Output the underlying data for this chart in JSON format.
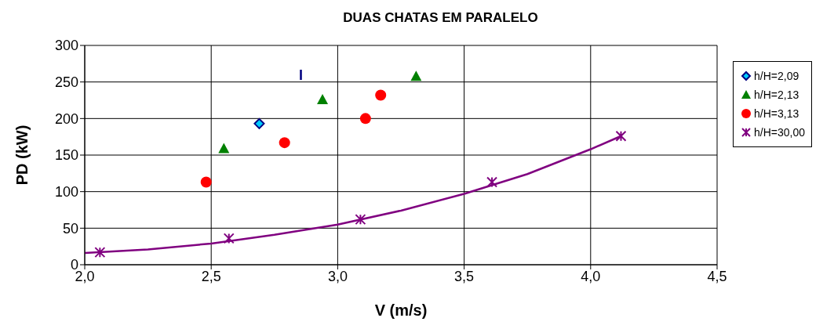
{
  "chart_data": {
    "type": "scatter",
    "title": "DUAS CHATAS EM PARALELO",
    "xlabel": "V (m/s)",
    "ylabel": "PD (kW)",
    "xlim": [
      2.0,
      4.5
    ],
    "xticks": [
      {
        "value": 2,
        "label": "2,0"
      },
      {
        "value": 2.5,
        "label": "2,5"
      },
      {
        "value": 3,
        "label": "3,0"
      },
      {
        "value": 3.5,
        "label": "3,5"
      },
      {
        "value": 4,
        "label": "4,0"
      },
      {
        "value": 4.5,
        "label": "4,5"
      }
    ],
    "ylim": [
      0,
      300
    ],
    "yticks": [
      0,
      50,
      100,
      150,
      200,
      250,
      300
    ],
    "grid": true,
    "legend": "right",
    "annotations": [
      "I"
    ],
    "series": [
      {
        "name": "h/H=2,09",
        "color": "#00ccff",
        "marker": "diamond",
        "x": [
          2.69
        ],
        "values": [
          193
        ]
      },
      {
        "name": "h/H=2,13",
        "color": "#008000",
        "marker": "triangle",
        "x": [
          2.55,
          2.94,
          3.31
        ],
        "values": [
          159,
          226,
          258
        ]
      },
      {
        "name": "h/H=3,13",
        "color": "#ff0000",
        "marker": "circle",
        "x": [
          2.48,
          2.79,
          3.11,
          3.17
        ],
        "values": [
          113,
          167,
          200,
          232
        ]
      },
      {
        "name": "h/H=30,00",
        "color": "#800080",
        "marker": "cross",
        "x": [
          2.06,
          2.57,
          3.09,
          3.61,
          4.12
        ],
        "values": [
          17,
          36,
          62,
          113,
          176
        ]
      },
      {
        "type": "line",
        "color": "#800080",
        "marker": "none",
        "x": [
          2.0,
          2.25,
          2.5,
          2.75,
          3.0,
          3.25,
          3.5,
          3.75,
          4.0,
          4.12
        ],
        "values": [
          16,
          21,
          29,
          41,
          55,
          74,
          97,
          124,
          158,
          176
        ]
      }
    ]
  }
}
